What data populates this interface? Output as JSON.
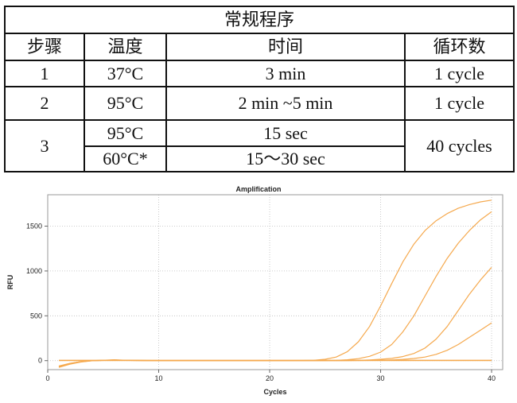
{
  "protocol_table": {
    "title": "常规程序",
    "headers": [
      "步骤",
      "温度",
      "时间",
      "循环数"
    ],
    "step1": {
      "step": "1",
      "temp": "37°C",
      "time": "3 min",
      "cycles": "1 cycle"
    },
    "step2": {
      "step": "2",
      "temp": "95°C",
      "time": "2 min ~5 min",
      "cycles": "1 cycle"
    },
    "step3": {
      "step": "3",
      "temp_a": "95°C",
      "time_a": "15 sec",
      "temp_b": "60°C*",
      "time_b": "15～30 sec",
      "cycles": "40 cycles"
    }
  },
  "chart_data": {
    "type": "line",
    "title": "Amplification",
    "xlabel": "Cycles",
    "ylabel": "RFU",
    "xlim": [
      0,
      41
    ],
    "ylim": [
      -100,
      1850
    ],
    "xticks": [
      0,
      10,
      20,
      30,
      40
    ],
    "yticks": [
      0,
      500,
      1000,
      1500
    ],
    "grid": true,
    "line_color": "#f5a94e",
    "series": [
      {
        "x": [
          1,
          2,
          3,
          4,
          5,
          6,
          7,
          8,
          9,
          10,
          11,
          12,
          13,
          14,
          15,
          16,
          17,
          18,
          19,
          20,
          21,
          22,
          23,
          24,
          25,
          26,
          27,
          28,
          29,
          30,
          31,
          32,
          33,
          34,
          35,
          36,
          37,
          38,
          39,
          40
        ],
        "values": [
          -60,
          -30,
          -10,
          0,
          5,
          10,
          5,
          3,
          2,
          1,
          1,
          1,
          1,
          1,
          1,
          1,
          1,
          1,
          1,
          1,
          1,
          1,
          2,
          5,
          15,
          40,
          100,
          210,
          380,
          610,
          860,
          1100,
          1300,
          1450,
          1560,
          1640,
          1700,
          1740,
          1770,
          1790
        ]
      },
      {
        "x": [
          1,
          2,
          3,
          4,
          5,
          6,
          7,
          8,
          9,
          10,
          11,
          12,
          13,
          14,
          15,
          16,
          17,
          18,
          19,
          20,
          21,
          22,
          23,
          24,
          25,
          26,
          27,
          28,
          29,
          30,
          31,
          32,
          33,
          34,
          35,
          36,
          37,
          38,
          39,
          40
        ],
        "values": [
          -75,
          -40,
          -15,
          -2,
          3,
          6,
          4,
          2,
          1,
          1,
          1,
          1,
          1,
          1,
          1,
          1,
          1,
          1,
          1,
          1,
          1,
          1,
          1,
          1,
          2,
          4,
          10,
          22,
          48,
          95,
          180,
          320,
          500,
          720,
          940,
          1140,
          1310,
          1450,
          1570,
          1660
        ]
      },
      {
        "x": [
          1,
          2,
          3,
          4,
          5,
          6,
          7,
          8,
          9,
          10,
          11,
          12,
          13,
          14,
          15,
          16,
          17,
          18,
          19,
          20,
          21,
          22,
          23,
          24,
          25,
          26,
          27,
          28,
          29,
          30,
          31,
          32,
          33,
          34,
          35,
          36,
          37,
          38,
          39,
          40
        ],
        "values": [
          -70,
          -35,
          -12,
          -1,
          4,
          8,
          4,
          2,
          1,
          1,
          1,
          1,
          1,
          1,
          1,
          1,
          1,
          1,
          1,
          1,
          1,
          1,
          1,
          1,
          1,
          1,
          2,
          4,
          8,
          15,
          25,
          45,
          80,
          140,
          240,
          380,
          560,
          740,
          900,
          1040
        ]
      },
      {
        "x": [
          1,
          2,
          3,
          4,
          5,
          6,
          7,
          8,
          9,
          10,
          11,
          12,
          13,
          14,
          15,
          16,
          17,
          18,
          19,
          20,
          21,
          22,
          23,
          24,
          25,
          26,
          27,
          28,
          29,
          30,
          31,
          32,
          33,
          34,
          35,
          36,
          37,
          38,
          39,
          40
        ],
        "values": [
          -65,
          -32,
          -11,
          0,
          3,
          5,
          3,
          2,
          1,
          1,
          1,
          1,
          1,
          1,
          1,
          1,
          1,
          1,
          1,
          1,
          1,
          1,
          1,
          1,
          1,
          1,
          1,
          2,
          3,
          5,
          8,
          14,
          24,
          40,
          70,
          115,
          180,
          260,
          340,
          420
        ]
      },
      {
        "x": [
          1,
          40
        ],
        "values": [
          3,
          3
        ]
      }
    ]
  }
}
